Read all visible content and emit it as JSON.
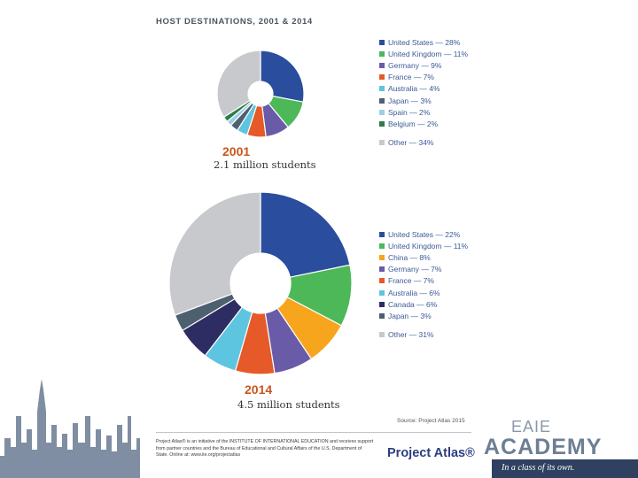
{
  "title": "HOST DESTINATIONS, 2001 & 2014",
  "colors": {
    "us": "#2a4d9e",
    "uk": "#4cb858",
    "germany": "#6a5ba8",
    "france": "#e55a28",
    "australia": "#5ec5e0",
    "japan": "#4d6070",
    "spain": "#9ecfe4",
    "belgium": "#2e7d48",
    "other": "#c8c9cc",
    "china": "#f6a51d",
    "canada": "#2d2d63"
  },
  "chart_data": [
    {
      "type": "pie",
      "title": "2001",
      "subtitle": "2.1 million students",
      "slices": [
        {
          "label": "United States — 28%",
          "value": 28,
          "color_key": "us"
        },
        {
          "label": "United Kingdom — 11%",
          "value": 11,
          "color_key": "uk"
        },
        {
          "label": "Germany — 9%",
          "value": 9,
          "color_key": "germany"
        },
        {
          "label": "France — 7%",
          "value": 7,
          "color_key": "france"
        },
        {
          "label": "Australia — 4%",
          "value": 4,
          "color_key": "australia"
        },
        {
          "label": "Japan — 3%",
          "value": 3,
          "color_key": "japan"
        },
        {
          "label": "Spain — 2%",
          "value": 2,
          "color_key": "spain"
        },
        {
          "label": "Belgium — 2%",
          "value": 2,
          "color_key": "belgium"
        },
        {
          "label": "Other — 34%",
          "value": 34,
          "color_key": "other"
        }
      ]
    },
    {
      "type": "pie",
      "title": "2014",
      "subtitle": "4.5 million students",
      "slices": [
        {
          "label": "United States — 22%",
          "value": 22,
          "color_key": "us"
        },
        {
          "label": "United Kingdom — 11%",
          "value": 11,
          "color_key": "uk"
        },
        {
          "label": "China — 8%",
          "value": 8,
          "color_key": "china"
        },
        {
          "label": "Germany — 7%",
          "value": 7,
          "color_key": "germany"
        },
        {
          "label": "France — 7%",
          "value": 7,
          "color_key": "france"
        },
        {
          "label": "Australia — 6%",
          "value": 6,
          "color_key": "australia"
        },
        {
          "label": "Canada — 6%",
          "value": 6,
          "color_key": "canada"
        },
        {
          "label": "Japan — 3%",
          "value": 3,
          "color_key": "japan"
        },
        {
          "label": "Other — 31%",
          "value": 31,
          "color_key": "other"
        }
      ]
    }
  ],
  "source": "Source: Project Atlas 2015",
  "footnote": "Project Atlas® is an initiative of the INSTITUTE OF INTERNATIONAL EDUCATION and receives support from partner countries and the Bureau of Educational and Cultural Affairs of the U.S. Department of State. Online at: www.iie.org/projectatlas",
  "pa_logo": "Project Atlas®",
  "branding": {
    "eaie": "EAIE",
    "academy": "ACADEMY",
    "tagline": "In a class of its own."
  }
}
